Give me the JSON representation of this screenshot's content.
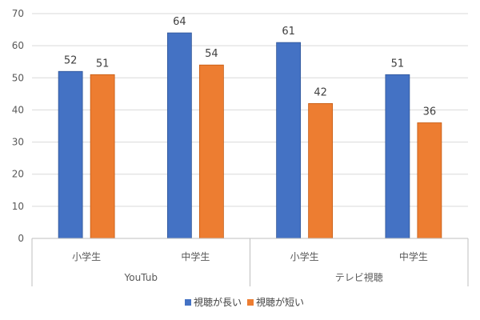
{
  "chart_data": {
    "type": "bar",
    "ylim": [
      0,
      70
    ],
    "yticks": [
      0,
      10,
      20,
      30,
      40,
      50,
      60,
      70
    ],
    "grid": true,
    "legend_position": "bottom",
    "groups": [
      {
        "label": "YouTub",
        "categories": [
          "小学生",
          "中学生"
        ]
      },
      {
        "label": "テレビ視聴",
        "categories": [
          "小学生",
          "中学生"
        ]
      }
    ],
    "series": [
      {
        "name": "視聴が長い",
        "color": "#4472C4",
        "values": [
          52,
          64,
          61,
          51
        ]
      },
      {
        "name": "視聴が短い",
        "color": "#ED7D31",
        "values": [
          51,
          54,
          42,
          36
        ]
      }
    ],
    "data_labels": [
      [
        "52",
        "64",
        "61",
        "51"
      ],
      [
        "51",
        "54",
        "42",
        "36"
      ]
    ]
  }
}
